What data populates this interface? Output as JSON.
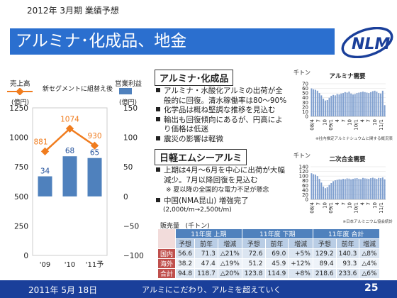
{
  "header": {
    "subtitle": "2012年 3月期 業績予想",
    "title": "アルミナ･化成品、地金"
  },
  "logo": {
    "text": "NLM"
  },
  "left_chart": {
    "legend_sales": "売上高",
    "legend_sales_unit": "(億円)",
    "legend_segment": "新セグメントに組替え後",
    "legend_profit": "営業利益",
    "legend_profit_unit": "(億円)",
    "left_ticks": [
      "1250",
      "1000",
      "750",
      "500",
      "250",
      "0"
    ],
    "right_ticks": [
      "150",
      "100",
      "50",
      "0",
      "−50",
      "−100"
    ],
    "categories": [
      "'09",
      "'10",
      "'11予"
    ],
    "sales_labels": [
      "881",
      "1074",
      "930"
    ],
    "profit_labels": [
      "34",
      "68",
      "65"
    ]
  },
  "chart_data": [
    {
      "type": "bar",
      "title": "",
      "categories": [
        "'09",
        "'10",
        "'11予"
      ],
      "series": [
        {
          "name": "営業利益",
          "axis": "right",
          "values": [
            34,
            68,
            65
          ],
          "color": "#4f81bd"
        },
        {
          "name": "売上高",
          "axis": "left",
          "type": "line",
          "values": [
            881,
            1074,
            930
          ],
          "color": "#f07c1e"
        }
      ],
      "ylim_left": [
        0,
        1250
      ],
      "ylim_right": [
        -100,
        150
      ],
      "ylabel_left": "(億円)",
      "ylabel_right": "(億円)"
    },
    {
      "type": "bar",
      "title": "アルミナ需要",
      "ylabel": "千トン",
      "ylim": [
        0,
        70
      ],
      "yticks": [
        "70",
        "60",
        "50",
        "40",
        "30",
        "20",
        "10",
        "0"
      ],
      "xticks": [
        "08/4",
        "7",
        "10",
        "09/1",
        "4",
        "7",
        "10",
        "10/1",
        "4",
        "7",
        "10",
        "11/1"
      ],
      "values": [
        60,
        58,
        57,
        55,
        50,
        45,
        38,
        34,
        35,
        40,
        44,
        46,
        45,
        48,
        47,
        49,
        50,
        52,
        51,
        53,
        49,
        47,
        48,
        50,
        51,
        52,
        53,
        52,
        51,
        50,
        52,
        54,
        55,
        53,
        50,
        49,
        55,
        24
      ],
      "source": "※社内推定アルミナシュウムに関する概況表",
      "color": "#7f9fcf"
    },
    {
      "type": "bar",
      "title": "二次合金需要",
      "ylabel": "千トン",
      "ylim": [
        0,
        140
      ],
      "yticks": [
        "140",
        "120",
        "100",
        "80",
        "60",
        "40",
        "20",
        "0"
      ],
      "xticks": [
        "08/4",
        "7",
        "10",
        "09/1",
        "4",
        "7",
        "10",
        "10/1",
        "4",
        "7",
        "10",
        "11/1"
      ],
      "values": [
        112,
        108,
        106,
        100,
        88,
        72,
        55,
        48,
        52,
        62,
        70,
        78,
        82,
        84,
        86,
        85,
        88,
        87,
        90,
        89,
        86,
        88,
        90,
        91,
        88,
        87,
        92,
        90,
        89,
        88,
        91,
        93,
        90,
        88,
        92,
        91,
        94,
        86
      ],
      "source": "※日本アルミニウム協会統計",
      "color": "#7f9fcf"
    }
  ],
  "alumina": {
    "heading": "アルミナ･化成品",
    "bullets": [
      "アルミナ・水酸化アルミの出荷が全般的に回復。清水稼働率は80～90%",
      "化学品は概ね堅調な推移を見込む",
      "輸出も回復傾向にあるが、円高により価格は低迷",
      "震災の影響は軽微"
    ]
  },
  "ingot": {
    "heading": "日軽エムシーアルミ",
    "bullets": [
      "上期は4月～6月を中心に出荷が大幅減少。7月以降回復を見込む",
      "中国(NMA昆山) 増強完了"
    ],
    "note1": "※ 夏以降の全国的な電力不足が懸念",
    "note2": "(2,000t/m→2,500t/m)"
  },
  "sales_table": {
    "caption": "販売量",
    "unit": "(千トン)",
    "groups": [
      "11年度 上期",
      "11年度 下期",
      "11年度 合計"
    ],
    "subheaders": [
      "予想",
      "前年",
      "増減"
    ],
    "rows": [
      {
        "label": "国内",
        "cells": [
          "56.6",
          "71.3",
          "△21%",
          "72.6",
          "69.0",
          "+5%",
          "129.2",
          "140.3",
          "△8%"
        ]
      },
      {
        "label": "海外",
        "cells": [
          "38.2",
          "47.4",
          "△19%",
          "51.2",
          "45.9",
          "+12%",
          "89.4",
          "93.3",
          "△4%"
        ]
      },
      {
        "label": "合計",
        "cells": [
          "94.8",
          "118.7",
          "△20%",
          "123.8",
          "114.9",
          "+8%",
          "218.6",
          "233.6",
          "△6%"
        ]
      }
    ]
  },
  "footer": {
    "date": "2011年 5月 18日",
    "slogan": "アルミにこだわり、アルミを超えていく",
    "page": "25"
  }
}
